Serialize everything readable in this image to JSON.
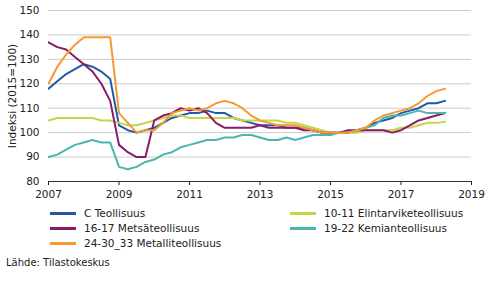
{
  "chart_data": {
    "type": "line",
    "y_label": "Indeksi (2015=100)",
    "source": "Lähde: Tilastokeskus",
    "x": [
      2007,
      2007.25,
      2007.5,
      2007.75,
      2008,
      2008.25,
      2008.5,
      2008.75,
      2009,
      2009.25,
      2009.5,
      2009.75,
      2010,
      2010.25,
      2010.5,
      2010.75,
      2011,
      2011.25,
      2011.5,
      2011.75,
      2012,
      2012.25,
      2012.5,
      2012.75,
      2013,
      2013.25,
      2013.5,
      2013.75,
      2014,
      2014.25,
      2014.5,
      2014.75,
      2015,
      2015.25,
      2015.5,
      2015.75,
      2016,
      2016.25,
      2016.5,
      2016.75,
      2017,
      2017.25,
      2017.5,
      2017.75,
      2018,
      2018.25
    ],
    "series": [
      {
        "name": "C Teollisuus",
        "color": "#1f5aa6",
        "values": [
          118,
          121,
          124,
          126,
          128,
          127,
          125,
          122,
          103,
          101,
          100,
          101,
          102,
          104,
          106,
          107,
          108,
          108,
          109,
          108,
          108,
          106,
          105,
          104,
          103,
          103,
          103,
          102,
          102,
          102,
          101,
          100,
          100,
          100,
          100,
          101,
          102,
          104,
          105,
          106,
          108,
          109,
          110,
          112,
          112,
          113
        ]
      },
      {
        "name": "10-11 Elintarviketeollisuus",
        "color": "#c3d548",
        "values": [
          105,
          106,
          106,
          106,
          106,
          106,
          105,
          105,
          104,
          103,
          103,
          104,
          105,
          106,
          107,
          107,
          106,
          106,
          106,
          106,
          106,
          106,
          105,
          105,
          105,
          105,
          105,
          104,
          104,
          103,
          102,
          101,
          100,
          100,
          100,
          100,
          101,
          101,
          101,
          101,
          102,
          102,
          103,
          104,
          104,
          104.5
        ]
      },
      {
        "name": "16-17 Metsäteollisuus",
        "color": "#8b1a6b",
        "values": [
          137,
          135,
          134,
          131,
          128,
          125,
          120,
          113,
          95,
          92,
          90,
          90,
          105,
          107,
          108,
          110,
          109,
          110,
          108,
          104,
          102,
          102,
          102,
          102,
          103,
          102,
          102,
          102,
          102,
          101,
          101,
          100,
          100,
          100,
          101,
          101,
          101,
          101,
          101,
          100,
          101,
          103,
          105,
          106,
          107,
          108
        ]
      },
      {
        "name": "19-22 Kemianteollisuus",
        "color": "#4bb5b0",
        "values": [
          90,
          91,
          93,
          95,
          96,
          97,
          96,
          96,
          86,
          85,
          86,
          88,
          89,
          91,
          92,
          94,
          95,
          96,
          97,
          97,
          98,
          98,
          99,
          99,
          98,
          97,
          97,
          98,
          97,
          98,
          99,
          99,
          99,
          100,
          100,
          101,
          102,
          103,
          106,
          107,
          107,
          108,
          109,
          108,
          108,
          108
        ]
      },
      {
        "name": "24-30_33 Metalliteollisuus",
        "color": "#f49a31",
        "values": [
          120,
          127,
          132,
          136,
          139,
          139,
          139,
          139,
          108,
          104,
          100,
          101,
          101,
          104,
          108,
          109,
          110,
          109,
          110,
          112,
          113,
          112,
          110,
          107,
          105,
          104,
          103,
          103,
          103,
          102,
          101,
          100,
          100,
          100,
          100,
          101,
          102,
          105,
          107,
          108,
          109,
          110,
          112,
          115,
          117,
          118
        ]
      }
    ],
    "xlim": [
      2007,
      2019
    ],
    "xticks": [
      2007,
      2009,
      2011,
      2013,
      2015,
      2017,
      2019
    ],
    "ylim": [
      80,
      150
    ],
    "yticks": [
      80,
      90,
      100,
      110,
      120,
      130,
      140,
      150
    ],
    "grid": true,
    "legend": "bottom"
  }
}
